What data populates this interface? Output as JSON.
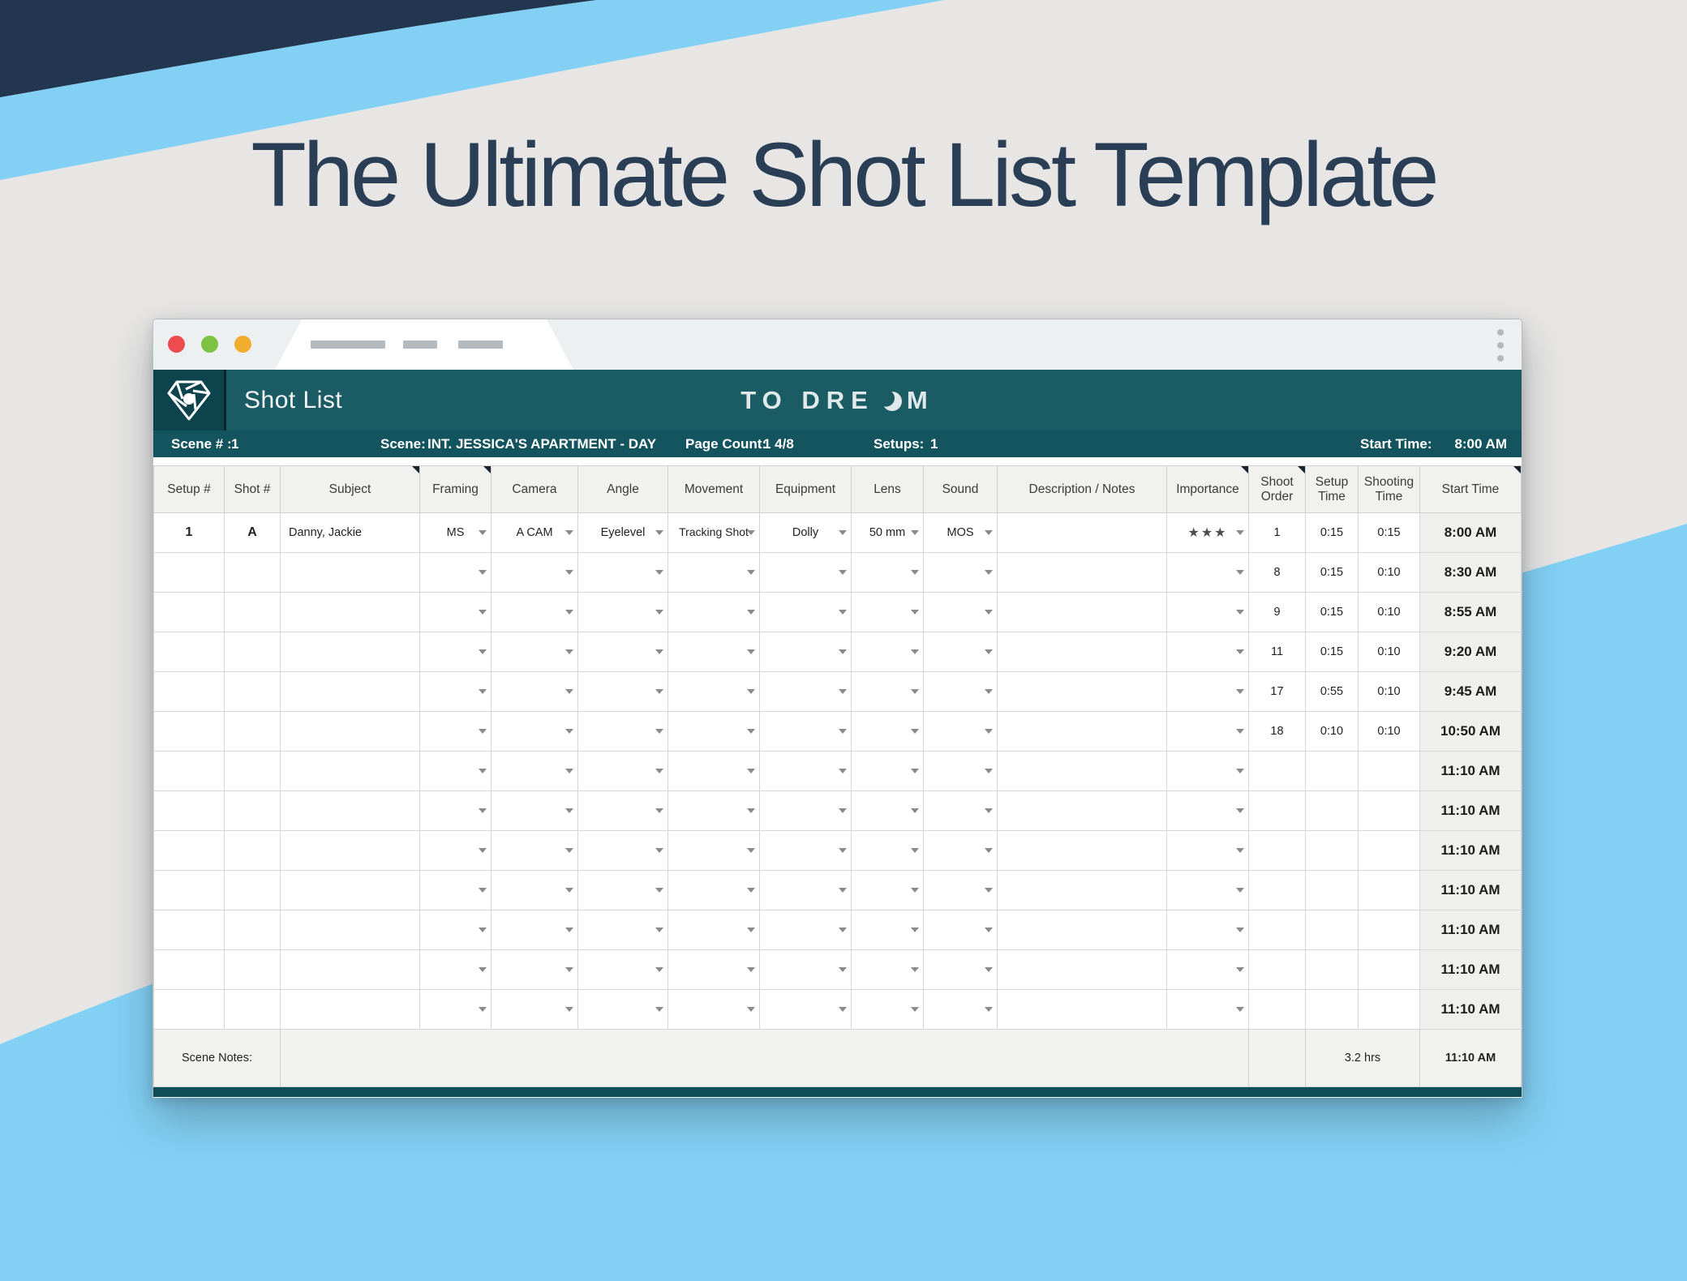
{
  "page": {
    "title": "The Ultimate Shot List Template"
  },
  "colors": {
    "bg_gray": "#e7e6e5",
    "navy_band": "#223650",
    "blue_band": "#82d1f5",
    "teal_header": "#1b5b64",
    "teal_logo_box": "#0d434d",
    "teal_scene_bar": "#14545e",
    "teal_bottom_bar": "#0e4c56",
    "traffic_red": "#ee4b4e",
    "traffic_green": "#7dc242",
    "traffic_yellow": "#f0ad2d",
    "title_text": "#2a3e55",
    "start_col_bg": "#efefed"
  },
  "icons": {
    "logo": "diamond-aperture-icon",
    "brand_moon": "crescent-moon-icon",
    "menu": "kebab-menu-icon",
    "dropdown": "chevron-down-icon",
    "comment_marker": "comment-triangle-icon"
  },
  "window": {
    "app_title": "Shot List",
    "brand": {
      "pre": "TO DRE",
      "post": "M"
    },
    "scene_bar": {
      "scene_label": "Scene # :",
      "scene_num": "1",
      "scene_name_label": "Scene:",
      "scene_name": "INT. JESSICA'S APARTMENT - DAY",
      "page_count_label": "Page Count:",
      "page_count": "1 4/8",
      "setups_label": "Setups:",
      "setups": "1",
      "start_time_label": "Start Time:",
      "start_time": "8:00 AM"
    },
    "table": {
      "columns": [
        {
          "label": "Setup #",
          "field": "setup"
        },
        {
          "label": "Shot #",
          "field": "shot"
        },
        {
          "label": "Subject",
          "field": "subject",
          "comment": true
        },
        {
          "label": "Framing",
          "field": "framing",
          "dropdown": true,
          "comment": true
        },
        {
          "label": "Camera",
          "field": "camera",
          "dropdown": true
        },
        {
          "label": "Angle",
          "field": "angle",
          "dropdown": true
        },
        {
          "label": "Movement",
          "field": "movement",
          "dropdown": true
        },
        {
          "label": "Equipment",
          "field": "equipment",
          "dropdown": true
        },
        {
          "label": "Lens",
          "field": "lens",
          "dropdown": true
        },
        {
          "label": "Sound",
          "field": "sound",
          "dropdown": true
        },
        {
          "label": "Description / Notes",
          "field": "notes"
        },
        {
          "label": "Importance",
          "field": "importance",
          "dropdown": true,
          "comment": true
        },
        {
          "label": "Shoot Order",
          "field": "shoot_order",
          "comment": true
        },
        {
          "label": "Setup Time",
          "field": "setup_time"
        },
        {
          "label": "Shooting Time",
          "field": "shooting_time"
        },
        {
          "label": "Start Time",
          "field": "start_time",
          "comment": true,
          "start_col": true
        }
      ],
      "rows": [
        {
          "setup": "1",
          "shot": "A",
          "subject": "Danny, Jackie",
          "framing": "MS",
          "camera": "A CAM",
          "angle": "Eyelevel",
          "movement": "Tracking Shot",
          "equipment": "Dolly",
          "lens": "50 mm",
          "sound": "MOS",
          "notes": "",
          "importance": "★★★",
          "shoot_order": "1",
          "setup_time": "0:15",
          "shooting_time": "0:15",
          "start_time": "8:00 AM"
        },
        {
          "setup": "",
          "shot": "",
          "subject": "",
          "framing": "",
          "camera": "",
          "angle": "",
          "movement": "",
          "equipment": "",
          "lens": "",
          "sound": "",
          "notes": "",
          "importance": "",
          "shoot_order": "8",
          "setup_time": "0:15",
          "shooting_time": "0:10",
          "start_time": "8:30 AM"
        },
        {
          "setup": "",
          "shot": "",
          "subject": "",
          "framing": "",
          "camera": "",
          "angle": "",
          "movement": "",
          "equipment": "",
          "lens": "",
          "sound": "",
          "notes": "",
          "importance": "",
          "shoot_order": "9",
          "setup_time": "0:15",
          "shooting_time": "0:10",
          "start_time": "8:55 AM"
        },
        {
          "setup": "",
          "shot": "",
          "subject": "",
          "framing": "",
          "camera": "",
          "angle": "",
          "movement": "",
          "equipment": "",
          "lens": "",
          "sound": "",
          "notes": "",
          "importance": "",
          "shoot_order": "11",
          "setup_time": "0:15",
          "shooting_time": "0:10",
          "start_time": "9:20 AM"
        },
        {
          "setup": "",
          "shot": "",
          "subject": "",
          "framing": "",
          "camera": "",
          "angle": "",
          "movement": "",
          "equipment": "",
          "lens": "",
          "sound": "",
          "notes": "",
          "importance": "",
          "shoot_order": "17",
          "setup_time": "0:55",
          "shooting_time": "0:10",
          "start_time": "9:45 AM"
        },
        {
          "setup": "",
          "shot": "",
          "subject": "",
          "framing": "",
          "camera": "",
          "angle": "",
          "movement": "",
          "equipment": "",
          "lens": "",
          "sound": "",
          "notes": "",
          "importance": "",
          "shoot_order": "18",
          "setup_time": "0:10",
          "shooting_time": "0:10",
          "start_time": "10:50 AM"
        },
        {
          "setup": "",
          "shot": "",
          "subject": "",
          "framing": "",
          "camera": "",
          "angle": "",
          "movement": "",
          "equipment": "",
          "lens": "",
          "sound": "",
          "notes": "",
          "importance": "",
          "shoot_order": "",
          "setup_time": "",
          "shooting_time": "",
          "start_time": "11:10 AM"
        },
        {
          "setup": "",
          "shot": "",
          "subject": "",
          "framing": "",
          "camera": "",
          "angle": "",
          "movement": "",
          "equipment": "",
          "lens": "",
          "sound": "",
          "notes": "",
          "importance": "",
          "shoot_order": "",
          "setup_time": "",
          "shooting_time": "",
          "start_time": "11:10 AM"
        },
        {
          "setup": "",
          "shot": "",
          "subject": "",
          "framing": "",
          "camera": "",
          "angle": "",
          "movement": "",
          "equipment": "",
          "lens": "",
          "sound": "",
          "notes": "",
          "importance": "",
          "shoot_order": "",
          "setup_time": "",
          "shooting_time": "",
          "start_time": "11:10 AM"
        },
        {
          "setup": "",
          "shot": "",
          "subject": "",
          "framing": "",
          "camera": "",
          "angle": "",
          "movement": "",
          "equipment": "",
          "lens": "",
          "sound": "",
          "notes": "",
          "importance": "",
          "shoot_order": "",
          "setup_time": "",
          "shooting_time": "",
          "start_time": "11:10 AM"
        },
        {
          "setup": "",
          "shot": "",
          "subject": "",
          "framing": "",
          "camera": "",
          "angle": "",
          "movement": "",
          "equipment": "",
          "lens": "",
          "sound": "",
          "notes": "",
          "importance": "",
          "shoot_order": "",
          "setup_time": "",
          "shooting_time": "",
          "start_time": "11:10 AM"
        },
        {
          "setup": "",
          "shot": "",
          "subject": "",
          "framing": "",
          "camera": "",
          "angle": "",
          "movement": "",
          "equipment": "",
          "lens": "",
          "sound": "",
          "notes": "",
          "importance": "",
          "shoot_order": "",
          "setup_time": "",
          "shooting_time": "",
          "start_time": "11:10 AM"
        },
        {
          "setup": "",
          "shot": "",
          "subject": "",
          "framing": "",
          "camera": "",
          "angle": "",
          "movement": "",
          "equipment": "",
          "lens": "",
          "sound": "",
          "notes": "",
          "importance": "",
          "shoot_order": "",
          "setup_time": "",
          "shooting_time": "",
          "start_time": "11:10 AM"
        }
      ],
      "footer": {
        "scene_notes_label": "Scene Notes:",
        "notes": "",
        "total_hours": "3.2 hrs",
        "end_time": "11:10 AM"
      }
    }
  }
}
